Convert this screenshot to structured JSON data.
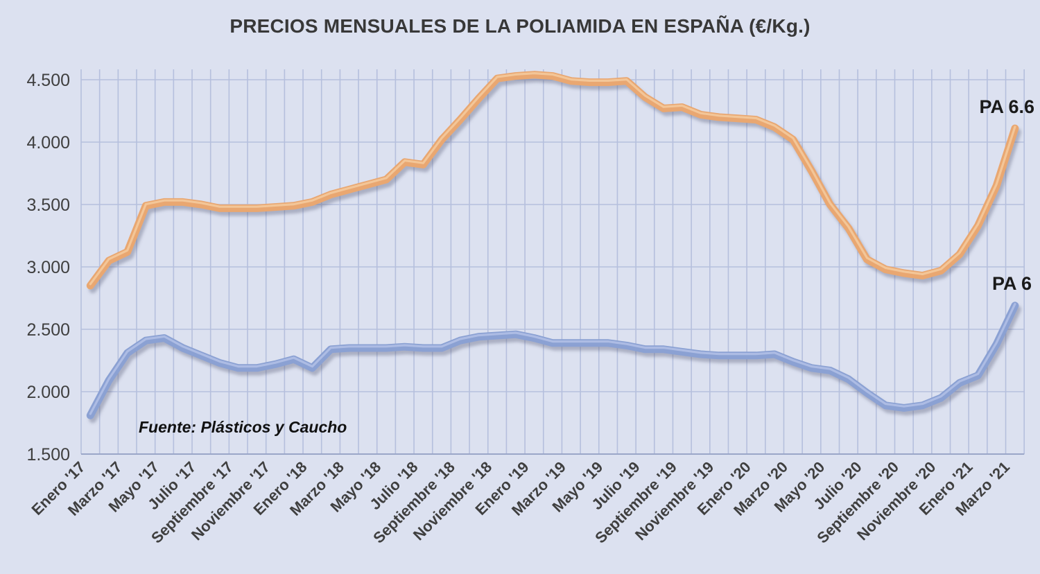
{
  "title": "PRECIOS MENSUALES DE LA POLIAMIDA EN ESPAÑA (€/Kg.)",
  "source_note": "Fuente: Plásticos  y Caucho",
  "colors": {
    "background": "#dce1f0",
    "gridline": "#b5bfdd",
    "axis_line": "#9aa6c8",
    "tick_text": "#3f3f3f",
    "pa66_line": "#e9a771",
    "pa66_highlight": "#f4cb9f",
    "pa6_line": "#8ba1d3",
    "pa6_highlight": "#b3c1e6",
    "shadow": "rgba(90,95,120,0.38)"
  },
  "chart_data": {
    "type": "line",
    "title": "PRECIOS MENSUALES DE LA POLIAMIDA EN ESPAÑA (€/Kg.)",
    "xlabel": "",
    "ylabel": "",
    "ylim": [
      1.5,
      4.58
    ],
    "grid": true,
    "legend_position": "right-of-line-ends",
    "y_ticks": [
      {
        "label": "1.500",
        "value": 1.5
      },
      {
        "label": "2.000",
        "value": 2.0
      },
      {
        "label": "2.500",
        "value": 2.5
      },
      {
        "label": "3.000",
        "value": 3.0
      },
      {
        "label": "3.500",
        "value": 3.5
      },
      {
        "label": "4.000",
        "value": 4.0
      },
      {
        "label": "4.500",
        "value": 4.5
      }
    ],
    "x_tick_labels_shown": [
      "Enero '17",
      "Marzo '17",
      "Mayo '17",
      "Julio '17",
      "Septiembre '17",
      "Noviembre '17",
      "Enero '18",
      "Marzo '18",
      "Mayo '18",
      "Julio '18",
      "Septiembre '18",
      "Noviembre '18",
      "Enero '19",
      "Marzo '19",
      "Mayo '19",
      "Julio '19",
      "Septiembre '19",
      "Noviembre '19",
      "Enero '20",
      "Marzo '20",
      "Mayo '20",
      "Julio '20",
      "Septiembre '20",
      "Noviembre '20",
      "Enero '21",
      "Marzo '21"
    ],
    "categories": [
      "Enero '17",
      "Febrero '17",
      "Marzo '17",
      "Abril '17",
      "Mayo '17",
      "Junio '17",
      "Julio '17",
      "Agosto '17",
      "Septiembre '17",
      "Octubre '17",
      "Noviembre '17",
      "Diciembre '17",
      "Enero '18",
      "Febrero '18",
      "Marzo '18",
      "Abril '18",
      "Mayo '18",
      "Junio '18",
      "Julio '18",
      "Agosto '18",
      "Septiembre '18",
      "Octubre '18",
      "Noviembre '18",
      "Diciembre '18",
      "Enero '19",
      "Febrero '19",
      "Marzo '19",
      "Abril '19",
      "Mayo '19",
      "Junio '19",
      "Julio '19",
      "Agosto '19",
      "Septiembre '19",
      "Octubre '19",
      "Noviembre '19",
      "Diciembre '19",
      "Enero '20",
      "Febrero '20",
      "Marzo '20",
      "Abril '20",
      "Mayo '20",
      "Junio '20",
      "Julio '20",
      "Agosto '20",
      "Septiembre '20",
      "Octubre '20",
      "Noviembre '20",
      "Diciembre '20",
      "Enero '21",
      "Febrero '21",
      "Marzo '21"
    ],
    "series": [
      {
        "name": "PA 6.6",
        "color": "#e9a771",
        "values": [
          2.85,
          3.05,
          3.12,
          3.49,
          3.52,
          3.52,
          3.5,
          3.47,
          3.47,
          3.47,
          3.48,
          3.49,
          3.52,
          3.58,
          3.62,
          3.66,
          3.7,
          3.84,
          3.82,
          4.02,
          4.18,
          4.35,
          4.51,
          4.53,
          4.54,
          4.53,
          4.49,
          4.48,
          4.48,
          4.49,
          4.36,
          4.27,
          4.28,
          4.22,
          4.2,
          4.19,
          4.18,
          4.12,
          4.02,
          3.77,
          3.5,
          3.31,
          3.06,
          2.98,
          2.95,
          2.93,
          2.97,
          3.1,
          3.33,
          3.65,
          4.11
        ]
      },
      {
        "name": "PA 6",
        "color": "#8ba1d3",
        "values": [
          1.81,
          2.09,
          2.31,
          2.41,
          2.43,
          2.35,
          2.29,
          2.23,
          2.19,
          2.19,
          2.22,
          2.26,
          2.19,
          2.34,
          2.35,
          2.35,
          2.35,
          2.36,
          2.35,
          2.35,
          2.41,
          2.44,
          2.45,
          2.46,
          2.43,
          2.39,
          2.39,
          2.39,
          2.39,
          2.37,
          2.34,
          2.34,
          2.32,
          2.3,
          2.29,
          2.29,
          2.29,
          2.3,
          2.24,
          2.19,
          2.17,
          2.1,
          1.99,
          1.89,
          1.87,
          1.89,
          1.95,
          2.07,
          2.13,
          2.38,
          2.69
        ]
      }
    ]
  }
}
